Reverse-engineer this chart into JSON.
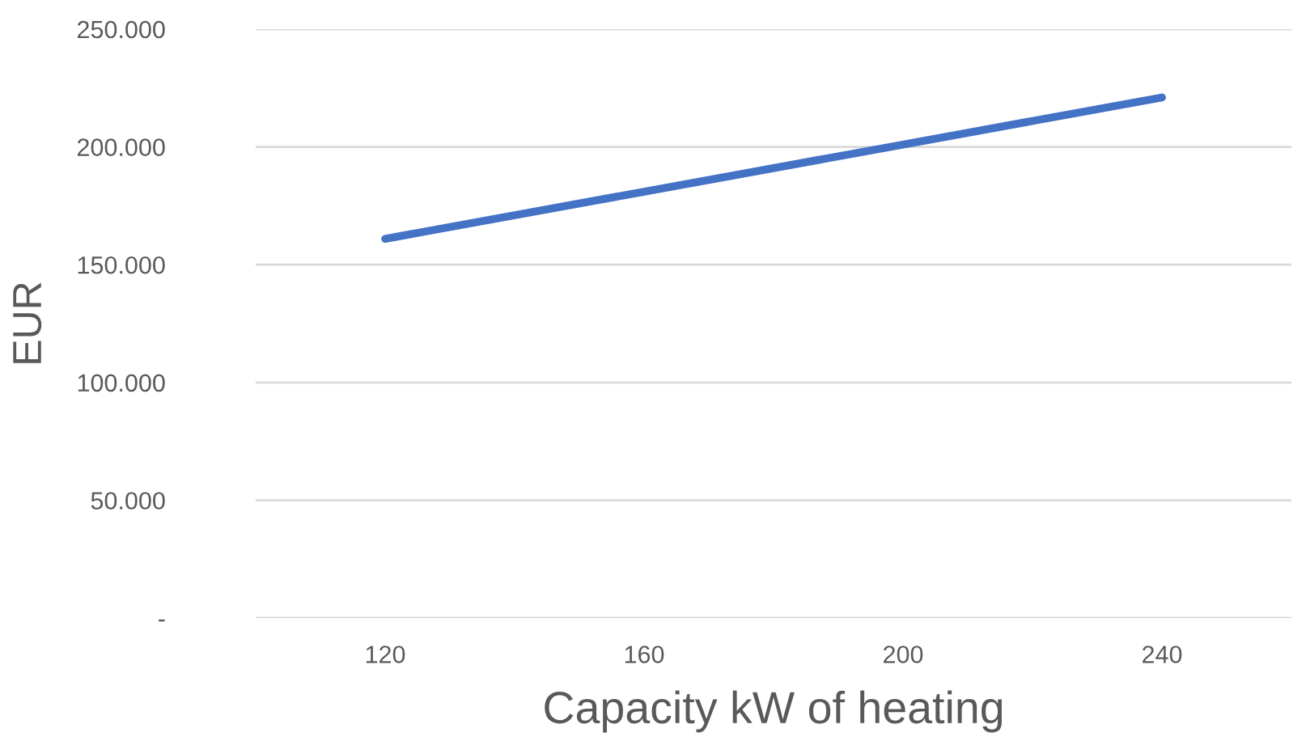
{
  "chart_data": {
    "type": "line",
    "xlabel": "Capacity kW of heating",
    "ylabel": "EUR",
    "categories": [
      "120",
      "160",
      "200",
      "240"
    ],
    "series": [
      {
        "color": "#4472c4",
        "values": [
          161000,
          181000,
          201000,
          221000
        ]
      }
    ],
    "ylim": [
      0,
      250000
    ],
    "yticks": [
      {
        "value": 0,
        "label": "-"
      },
      {
        "value": 50000,
        "label": "50.000"
      },
      {
        "value": 100000,
        "label": "100.000"
      },
      {
        "value": 150000,
        "label": "150.000"
      },
      {
        "value": 200000,
        "label": "200.000"
      },
      {
        "value": 250000,
        "label": "250.000"
      }
    ],
    "grid": "y",
    "marker": "none",
    "line_style": "solid",
    "legend": false
  }
}
